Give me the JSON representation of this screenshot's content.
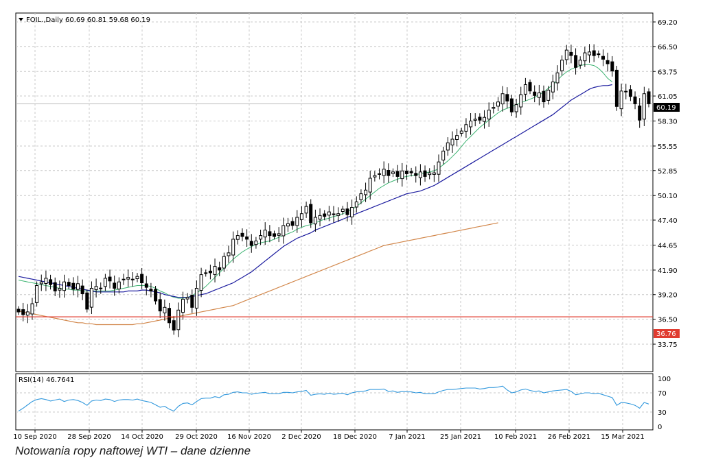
{
  "chart": {
    "header": "FOIL.,Daily  60.69 60.81 59.68 60.19",
    "rsi_header": "RSI(14) 46.7641",
    "current_price_label": "60.19",
    "level_line_label": "36.76",
    "caption": "Notowania ropy naftowej WTI – dane dzienne"
  },
  "colors": {
    "bull": "#ffffff",
    "bear": "#000000",
    "ma_fast": "#3cb371",
    "ma_mid": "#1a1a9e",
    "ma_slow": "#d2874b",
    "level_line": "#e03c31",
    "rsi": "#3399dd",
    "grid": "#c8c8c8"
  },
  "chart_data": [
    {
      "type": "candlestick",
      "title": "FOIL.,Daily",
      "ylim": [
        32.4,
        70.6
      ],
      "y_ticks": [
        "69.20",
        "66.50",
        "63.75",
        "61.05",
        "58.30",
        "55.55",
        "52.85",
        "50.10",
        "47.40",
        "44.65",
        "41.90",
        "39.20",
        "36.50",
        "33.75"
      ],
      "x_ticks": [
        "10 Sep 2020",
        "28 Sep 2020",
        "14 Oct 2020",
        "29 Oct 2020",
        "16 Nov 2020",
        "2 Dec 2020",
        "18 Dec 2020",
        "7 Jan 2021",
        "25 Jan 2021",
        "10 Feb 2021",
        "26 Feb 2021",
        "15 Mar 2021"
      ],
      "last_close": 60.19,
      "horizontal_line": 36.76,
      "close": [
        37.3,
        37.0,
        37.3,
        38.2,
        40.2,
        40.6,
        41.0,
        40.3,
        39.6,
        39.9,
        40.6,
        40.2,
        39.8,
        40.4,
        39.3,
        37.6,
        39.9,
        40.1,
        39.9,
        41.0,
        40.7,
        39.9,
        40.6,
        40.9,
        41.1,
        40.9,
        41.2,
        40.5,
        40.0,
        39.6,
        38.5,
        37.4,
        37.8,
        36.1,
        35.3,
        37.5,
        38.7,
        38.9,
        37.8,
        39.9,
        41.4,
        41.6,
        41.6,
        42.3,
        41.9,
        43.4,
        43.8,
        45.3,
        45.7,
        45.6,
        45.3,
        44.6,
        45.1,
        45.7,
        46.3,
        45.7,
        45.6,
        45.9,
        46.8,
        47.0,
        46.8,
        47.7,
        48.1,
        48.9,
        47.1,
        47.7,
        47.9,
        47.8,
        48.3,
        48.0,
        48.1,
        48.6,
        48.0,
        48.8,
        49.4,
        50.3,
        50.7,
        52.0,
        52.3,
        52.5,
        53.0,
        52.3,
        52.7,
        52.2,
        52.8,
        52.5,
        52.6,
        52.3,
        52.7,
        52.2,
        52.6,
        52.6,
        53.8,
        55.0,
        55.9,
        56.3,
        56.7,
        57.2,
        57.9,
        58.3,
        58.5,
        58.4,
        58.7,
        59.5,
        59.8,
        60.4,
        61.3,
        60.5,
        59.3,
        60.1,
        61.2,
        62.3,
        61.6,
        61.1,
        61.4,
        60.4,
        61.7,
        62.6,
        63.6,
        65.0,
        66.1,
        65.5,
        64.2,
        65.0,
        65.8,
        65.9,
        65.5,
        65.6,
        65.1,
        64.6,
        63.8,
        59.9,
        61.6,
        61.5,
        61.0,
        60.2,
        58.4,
        61.3,
        60.19
      ],
      "series": [
        {
          "name": "",
          "values": [
            40.8,
            40.7,
            40.6,
            40.5,
            40.4,
            40.3,
            40.2,
            40.1,
            40.0,
            39.9,
            39.8,
            39.8,
            39.7,
            39.7,
            39.6,
            39.6,
            39.6,
            39.6,
            39.6,
            39.6,
            39.6,
            39.7,
            39.8,
            39.9,
            40.0,
            40.1,
            40.2,
            40.2,
            40.2,
            40.1,
            39.9,
            39.6,
            39.4,
            39.1,
            38.9,
            38.8,
            38.8,
            38.9,
            39.1,
            39.4,
            39.7,
            40.1,
            40.6,
            41.1,
            41.6,
            42.1,
            42.6,
            43.1,
            43.5,
            43.9,
            44.2,
            44.5,
            44.7,
            44.9,
            45.0,
            45.1,
            45.3,
            45.5,
            45.7,
            45.9,
            46.1,
            46.4,
            46.6,
            46.8,
            46.9,
            47.1,
            47.3,
            47.5,
            47.6,
            47.8,
            47.9,
            48.1,
            48.3,
            48.6,
            48.9,
            49.3,
            49.7,
            50.1,
            50.5,
            50.9,
            51.2,
            51.5,
            51.7,
            51.9,
            52.1,
            52.2,
            52.3,
            52.4,
            52.5,
            52.6,
            52.7,
            52.8,
            53.1,
            53.5,
            53.9,
            54.4,
            54.9,
            55.5,
            56.1,
            56.6,
            57.1,
            57.6,
            58.0,
            58.4,
            58.8,
            59.2,
            59.5,
            59.7,
            59.9,
            60.1,
            60.3,
            60.5,
            60.7,
            60.9,
            61.2,
            61.5,
            61.9,
            62.3,
            62.8,
            63.3,
            63.7,
            64.0,
            64.2,
            64.4,
            64.5,
            64.5,
            64.4,
            64.1,
            63.6,
            63.0,
            62.6
          ]
        },
        {
          "name": "",
          "values": [
            41.2,
            41.1,
            41.0,
            40.9,
            40.8,
            40.7,
            40.6,
            40.5,
            40.4,
            40.3,
            40.2,
            40.1,
            40.0,
            39.9,
            39.8,
            39.7,
            39.6,
            39.5,
            39.5,
            39.5,
            39.5,
            39.5,
            39.5,
            39.5,
            39.6,
            39.6,
            39.6,
            39.7,
            39.7,
            39.6,
            39.5,
            39.4,
            39.2,
            39.1,
            39.0,
            38.9,
            38.9,
            38.9,
            39.0,
            39.1,
            39.2,
            39.3,
            39.5,
            39.7,
            39.9,
            40.1,
            40.3,
            40.5,
            40.8,
            41.1,
            41.4,
            41.7,
            42.1,
            42.5,
            42.9,
            43.3,
            43.7,
            44.1,
            44.5,
            44.8,
            45.1,
            45.4,
            45.6,
            45.8,
            46.0,
            46.3,
            46.5,
            46.7,
            46.9,
            47.1,
            47.3,
            47.5,
            47.7,
            47.9,
            48.1,
            48.3,
            48.5,
            48.7,
            48.9,
            49.1,
            49.3,
            49.5,
            49.7,
            49.9,
            50.1,
            50.3,
            50.4,
            50.5,
            50.6,
            50.8,
            51.0,
            51.2,
            51.5,
            51.8,
            52.1,
            52.4,
            52.7,
            53.0,
            53.3,
            53.6,
            53.9,
            54.2,
            54.5,
            54.8,
            55.1,
            55.4,
            55.7,
            56.0,
            56.3,
            56.6,
            56.9,
            57.2,
            57.5,
            57.8,
            58.1,
            58.4,
            58.7,
            59.0,
            59.4,
            59.8,
            60.2,
            60.6,
            60.9,
            61.2,
            61.5,
            61.8,
            62.0,
            62.1,
            62.2,
            62.2,
            62.3
          ]
        },
        {
          "name": "",
          "values": [
            37.4,
            37.3,
            37.2,
            37.1,
            37.0,
            36.9,
            36.8,
            36.7,
            36.6,
            36.5,
            36.4,
            36.3,
            36.2,
            36.1,
            36.1,
            36.0,
            36.0,
            35.9,
            35.9,
            35.9,
            35.9,
            35.9,
            35.9,
            35.9,
            35.9,
            35.9,
            36.0,
            36.0,
            36.1,
            36.2,
            36.3,
            36.4,
            36.5,
            36.6,
            36.7,
            36.8,
            36.9,
            37.0,
            37.1,
            37.2,
            37.3,
            37.4,
            37.5,
            37.6,
            37.7,
            37.8,
            37.9,
            38.0,
            38.2,
            38.4,
            38.6,
            38.8,
            39.0,
            39.2,
            39.4,
            39.6,
            39.8,
            40.0,
            40.2,
            40.4,
            40.6,
            40.8,
            41.0,
            41.2,
            41.4,
            41.6,
            41.8,
            42.0,
            42.2,
            42.4,
            42.6,
            42.8,
            43.0,
            43.2,
            43.4,
            43.6,
            43.8,
            44.0,
            44.2,
            44.4,
            44.6,
            44.7,
            44.8,
            44.9,
            45.0,
            45.1,
            45.2,
            45.3,
            45.4,
            45.5,
            45.6,
            45.7,
            45.8,
            45.9,
            46.0,
            46.1,
            46.2,
            46.3,
            46.4,
            46.5,
            46.6,
            46.7,
            46.8,
            46.9,
            47.0,
            47.1
          ]
        }
      ]
    },
    {
      "type": "line",
      "title": "RSI(14) 46.7641",
      "ylim": [
        0,
        100
      ],
      "y_ticks": [
        "100",
        "70",
        "30",
        "0"
      ],
      "values": [
        32,
        38,
        45,
        52,
        56,
        58,
        56,
        53,
        55,
        57,
        52,
        55,
        56,
        54,
        50,
        44,
        53,
        55,
        54,
        57,
        56,
        52,
        55,
        56,
        56,
        55,
        57,
        54,
        52,
        50,
        45,
        40,
        42,
        36,
        32,
        42,
        48,
        49,
        45,
        52,
        58,
        59,
        59,
        62,
        60,
        66,
        67,
        71,
        72,
        70,
        70,
        67,
        69,
        70,
        71,
        68,
        68,
        68,
        71,
        71,
        70,
        72,
        73,
        75,
        65,
        67,
        68,
        67,
        69,
        67,
        68,
        69,
        66,
        70,
        72,
        73,
        74,
        77,
        77,
        77,
        78,
        73,
        74,
        71,
        73,
        72,
        72,
        70,
        71,
        68,
        68,
        68,
        72,
        75,
        77,
        77,
        78,
        79,
        80,
        80,
        80,
        78,
        79,
        81,
        81,
        82,
        84,
        76,
        70,
        72,
        76,
        78,
        75,
        73,
        74,
        70,
        72,
        74,
        75,
        76,
        77,
        73,
        66,
        68,
        70,
        70,
        68,
        69,
        66,
        63,
        60,
        44,
        50,
        49,
        47,
        44,
        38,
        50,
        46.76
      ]
    }
  ]
}
